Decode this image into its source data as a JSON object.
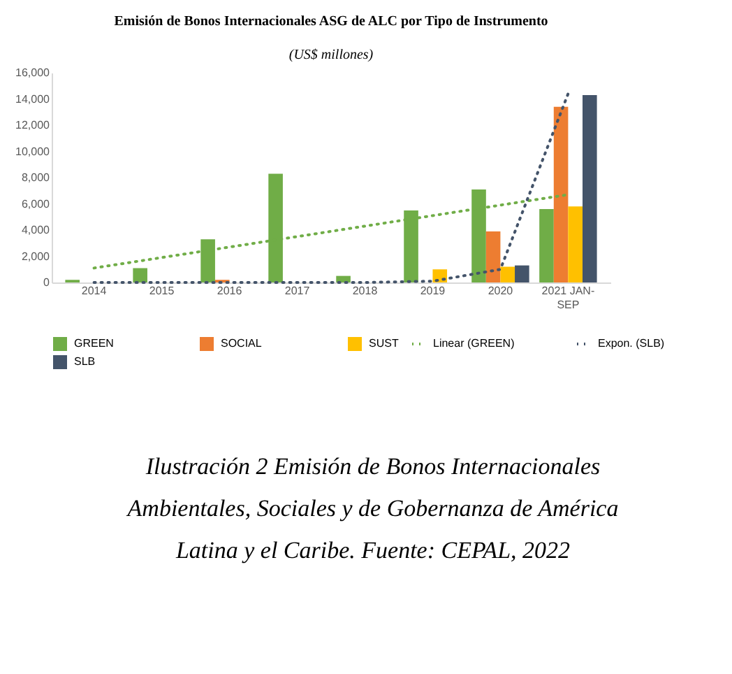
{
  "chart_data": {
    "type": "bar",
    "title": "Emisión de Bonos Internacionales ASG de ALC por Tipo de Instrumento",
    "subtitle": "(US$ millones)",
    "categories": [
      "2014",
      "2015",
      "2016",
      "2017",
      "2018",
      "2019",
      "2020",
      "2021 JAN-SEP"
    ],
    "series": [
      {
        "name": "GREEN",
        "color": "#70ad47",
        "values": [
          200,
          1100,
          3300,
          8300,
          500,
          5500,
          7100,
          5600
        ]
      },
      {
        "name": "SOCIAL",
        "color": "#ed7d31",
        "values": [
          null,
          null,
          200,
          null,
          null,
          null,
          3900,
          13400
        ]
      },
      {
        "name": "SUST",
        "color": "#ffc000",
        "values": [
          null,
          null,
          null,
          null,
          null,
          1000,
          1200,
          5800
        ]
      },
      {
        "name": "SLB",
        "color": "#44546a",
        "values": [
          null,
          null,
          null,
          null,
          null,
          null,
          1300,
          14300
        ]
      },
      {
        "name": "Linear (GREEN)",
        "type": "line",
        "line_style": "dotted",
        "color": "#70ad47",
        "values": [
          1100,
          1900,
          2700,
          3500,
          4300,
          5100,
          5900,
          6700
        ]
      },
      {
        "name": "Expon. (SLB)",
        "type": "line",
        "line_style": "dotted",
        "color": "#44546a",
        "values": [
          0,
          0,
          0,
          0,
          0,
          100,
          1000,
          14400
        ]
      }
    ],
    "ylim": [
      0,
      16000
    ],
    "yticks": [
      0,
      {
        "value": 2000,
        "label": "2,000"
      },
      {
        "value": 4000,
        "label": "4,000"
      },
      {
        "value": 6000,
        "label": "6,000"
      },
      {
        "value": 8000,
        "label": "8,000"
      },
      {
        "value": 10000,
        "label": "10,000"
      },
      {
        "value": 12000,
        "label": "12,000"
      },
      {
        "value": 14000,
        "label": "14,000"
      },
      {
        "value": 16000,
        "label": "16,000"
      }
    ],
    "grid": false,
    "legend": "bottom",
    "annotations": [
      "Ilustración 2 Emisión de Bonos Internacionales Ambientales, Sociales y de Gobernanza de América Latina y el Caribe. Fuente: CEPAL, 2022"
    ]
  }
}
